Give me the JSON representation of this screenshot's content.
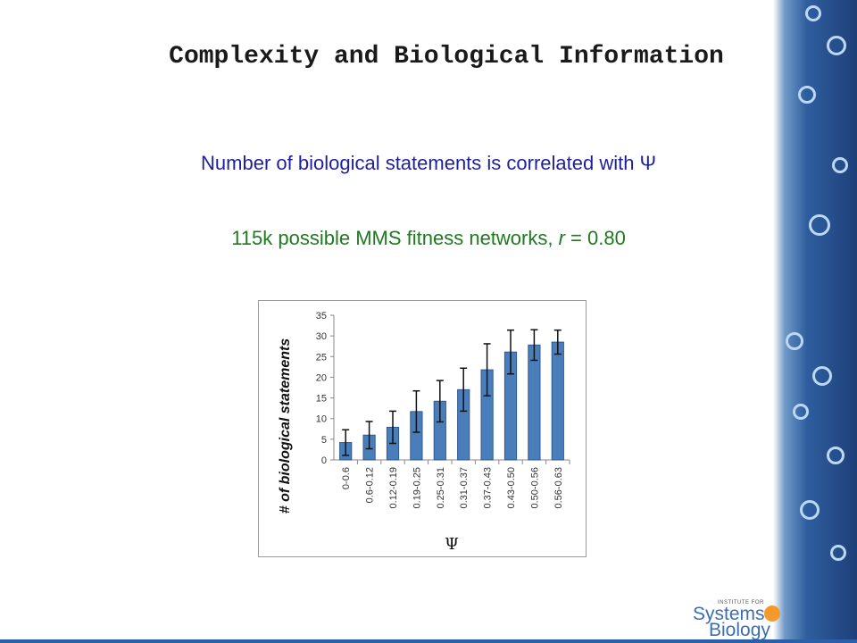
{
  "slide": {
    "title": "Complexity and Biological Information",
    "subtitle": "Number of biological statements is correlated with Ψ",
    "stat_prefix": "115k possible MMS fitness networks, ",
    "stat_r": "r",
    "stat_suffix": " = 0.80"
  },
  "logo": {
    "top_text": "INSTITUTE FOR",
    "line1": "Systems",
    "line2": "Biology"
  },
  "colors": {
    "bar_fill": "#4a7ebb",
    "bar_stroke": "#2f5a8f",
    "title_blue": "#1f1f9c",
    "stat_green": "#1f7a1f"
  },
  "chart_data": {
    "type": "bar",
    "categories": [
      "0-0.6",
      "0.6-0.12",
      "0.12-0.19",
      "0.19-0.25",
      "0.25-0.31",
      "0.31-0.37",
      "0.37-0.43",
      "0.43-0.50",
      "0.50-0.56",
      "0.56-0.63"
    ],
    "values": [
      4.2,
      6.0,
      7.9,
      11.7,
      14.2,
      17.0,
      21.8,
      26.1,
      27.8,
      28.5
    ],
    "error": [
      3.1,
      3.3,
      3.9,
      5.0,
      5.0,
      5.2,
      6.3,
      5.3,
      3.7,
      2.9
    ],
    "xlabel": "Ψ",
    "ylabel": "# of biological statements",
    "ylim": [
      0,
      35
    ],
    "yticks": [
      0,
      5,
      10,
      15,
      20,
      25,
      30,
      35
    ],
    "grid": false,
    "legend": "none"
  }
}
